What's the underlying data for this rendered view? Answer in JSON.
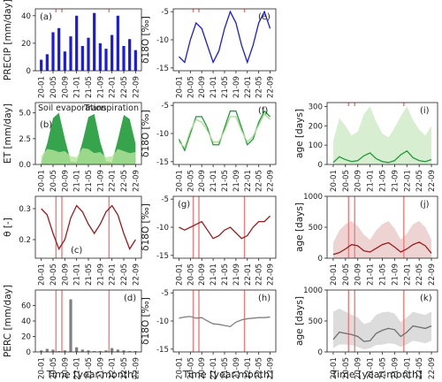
{
  "figure": {
    "x_axis_label": "Time [year-month]",
    "x_tick_labels": [
      "20-01",
      "20-05",
      "20-09",
      "21-01",
      "21-05",
      "21-09",
      "22-01",
      "22-05",
      "22-09"
    ],
    "event_marker_color": "#f07d7d"
  },
  "chart_data": [
    {
      "type": "bar",
      "panel": "(a)",
      "ylabel": "PRECIP [mm/day]",
      "ylim": [
        0,
        45
      ],
      "yticks": [
        "0",
        "20",
        "40"
      ],
      "color": "#1b1be0",
      "x": [
        "20-01",
        "20-03",
        "20-05",
        "20-07",
        "20-09",
        "20-11",
        "21-01",
        "21-03",
        "21-05",
        "21-07",
        "21-09",
        "21-11",
        "22-01",
        "22-03",
        "22-05",
        "22-07",
        "22-09"
      ],
      "values": [
        8,
        12,
        28,
        31,
        14,
        25,
        40,
        18,
        24,
        42,
        20,
        16,
        26,
        40,
        18,
        23,
        15
      ],
      "events": [
        "20-06",
        "20-08",
        "21-12"
      ]
    },
    {
      "type": "line",
      "panel": "(e)",
      "ylabel": "δ18O [‰]",
      "ylim": [
        -15.5,
        -4.5
      ],
      "yticks": [
        "-5",
        "-10",
        "-15"
      ],
      "color": "#1b1be0",
      "x": [
        "20-01",
        "20-03",
        "20-05",
        "20-07",
        "20-09",
        "20-11",
        "21-01",
        "21-03",
        "21-05",
        "21-07",
        "21-09",
        "21-11",
        "22-01",
        "22-03",
        "22-05",
        "22-07",
        "22-09"
      ],
      "values": [
        -13,
        -14,
        -10,
        -7,
        -8,
        -11,
        -14,
        -12,
        -8,
        -5,
        -7,
        -11,
        -14,
        -11,
        -7,
        -5,
        -8
      ],
      "events": [
        "20-06",
        "20-08",
        "21-12"
      ]
    },
    {
      "type": "area",
      "panel": "(b)",
      "ylabel": "ET [mm/day]",
      "ylim": [
        0,
        6
      ],
      "yticks": [
        "0.0",
        "2.5",
        "5.0"
      ],
      "annotations": [
        "Soil evaporation",
        "Transpiration"
      ],
      "x": [
        "20-01",
        "20-03",
        "20-05",
        "20-07",
        "20-09",
        "20-11",
        "21-01",
        "21-03",
        "21-05",
        "21-07",
        "21-09",
        "21-11",
        "22-01",
        "22-03",
        "22-05",
        "22-07",
        "22-09"
      ],
      "series": [
        {
          "color": "#1f9a3a",
          "values": [
            0.2,
            2.0,
            4.5,
            5.0,
            2.5,
            0.3,
            0.2,
            2.2,
            4.6,
            4.9,
            2.2,
            0.3,
            0.2,
            2.4,
            4.8,
            4.4,
            2.0
          ]
        },
        {
          "color": "#b7e59b",
          "values": [
            0.8,
            1.5,
            1.4,
            1.2,
            1.3,
            0.8,
            0.7,
            1.6,
            1.5,
            1.1,
            1.2,
            0.7,
            0.8,
            1.5,
            1.3,
            1.1,
            1.2
          ]
        }
      ]
    },
    {
      "type": "line",
      "panel": "(f)",
      "ylabel": "δ18O [‰]",
      "ylim": [
        -15.5,
        -4.5
      ],
      "yticks": [
        "-5",
        "-10",
        "-15"
      ],
      "band_color": "#a8dc92",
      "x": [
        "20-01",
        "20-03",
        "20-05",
        "20-07",
        "20-09",
        "20-11",
        "21-01",
        "21-03",
        "21-05",
        "21-07",
        "21-09",
        "21-11",
        "22-01",
        "22-03",
        "22-05",
        "22-07",
        "22-09"
      ],
      "series": [
        {
          "color": "#1f9a3a",
          "values": [
            -11,
            -13,
            -10,
            -7,
            -7,
            -9,
            -12,
            -12,
            -9,
            -6,
            -6,
            -9,
            -12,
            -11,
            -8,
            -6,
            -7
          ]
        },
        {
          "color": "#a8dc92",
          "values": [
            -11.5,
            -12.5,
            -9.5,
            -7.5,
            -8,
            -9.5,
            -11.5,
            -11.5,
            -9.5,
            -7,
            -7,
            -9.5,
            -11.5,
            -10.5,
            -8.5,
            -6.5,
            -7.5
          ]
        }
      ]
    },
    {
      "type": "line",
      "panel": "(i)",
      "ylabel": "age [days]",
      "ylim": [
        0,
        320
      ],
      "yticks": [
        "0",
        "100",
        "200",
        "300"
      ],
      "color": "#1f9a3a",
      "band_color": "#c9e8c2",
      "x": [
        "20-01",
        "20-03",
        "20-05",
        "20-07",
        "20-09",
        "20-11",
        "21-01",
        "21-03",
        "21-05",
        "21-07",
        "21-09",
        "21-11",
        "22-01",
        "22-03",
        "22-05",
        "22-07",
        "22-09"
      ],
      "values": [
        10,
        40,
        25,
        15,
        20,
        45,
        60,
        30,
        15,
        10,
        20,
        50,
        70,
        35,
        20,
        15,
        25
      ],
      "band_upper": [
        120,
        240,
        200,
        150,
        170,
        260,
        300,
        220,
        160,
        140,
        190,
        250,
        300,
        230,
        180,
        150,
        200
      ],
      "events": [
        "20-06",
        "20-08",
        "21-12"
      ]
    },
    {
      "type": "line",
      "panel": "(c)",
      "ylabel": "θ [-]",
      "ylim": [
        0.14,
        0.34
      ],
      "yticks": [
        "0.2",
        "0.3"
      ],
      "color": "#9b1c1c",
      "x": [
        "20-01",
        "20-03",
        "20-05",
        "20-07",
        "20-09",
        "20-11",
        "21-01",
        "21-03",
        "21-05",
        "21-07",
        "21-09",
        "21-11",
        "22-01",
        "22-03",
        "22-05",
        "22-07",
        "22-09"
      ],
      "values": [
        0.3,
        0.28,
        0.22,
        0.17,
        0.2,
        0.27,
        0.31,
        0.29,
        0.25,
        0.22,
        0.25,
        0.29,
        0.31,
        0.28,
        0.22,
        0.17,
        0.2
      ],
      "events": [
        "20-06",
        "20-08",
        "21-12"
      ]
    },
    {
      "type": "line",
      "panel": "(g)",
      "ylabel": "δ18O [‰]",
      "ylim": [
        -15.5,
        -4.5
      ],
      "yticks": [
        "-5",
        "-10",
        "-15"
      ],
      "color": "#9b1c1c",
      "x": [
        "20-01",
        "20-03",
        "20-05",
        "20-07",
        "20-09",
        "20-11",
        "21-01",
        "21-03",
        "21-05",
        "21-07",
        "21-09",
        "21-11",
        "22-01",
        "22-03",
        "22-05",
        "22-07",
        "22-09"
      ],
      "values": [
        -10,
        -10.5,
        -10,
        -9.5,
        -9,
        -10.5,
        -12,
        -11.5,
        -10.5,
        -10,
        -11,
        -12,
        -11.5,
        -10,
        -9,
        -9,
        -8
      ],
      "events": [
        "20-06",
        "20-08",
        "21-12"
      ]
    },
    {
      "type": "line",
      "panel": "(j)",
      "ylabel": "age [days]",
      "ylim": [
        0,
        1000
      ],
      "yticks": [
        "0",
        "500",
        "1000"
      ],
      "color": "#9b1c1c",
      "band_color": "#e8c4c4",
      "x": [
        "20-01",
        "20-03",
        "20-05",
        "20-07",
        "20-09",
        "20-11",
        "21-01",
        "21-03",
        "21-05",
        "21-07",
        "21-09",
        "21-11",
        "22-01",
        "22-03",
        "22-05",
        "22-07",
        "22-09"
      ],
      "values": [
        60,
        90,
        150,
        220,
        200,
        120,
        100,
        160,
        220,
        250,
        180,
        100,
        150,
        220,
        260,
        200,
        80
      ],
      "band_upper": [
        250,
        450,
        550,
        600,
        520,
        380,
        300,
        450,
        550,
        600,
        480,
        300,
        400,
        550,
        600,
        500,
        300
      ],
      "events": [
        "20-06",
        "20-08",
        "21-12"
      ]
    },
    {
      "type": "bar",
      "panel": "(d)",
      "ylabel": "PERC [mm/day]",
      "ylim": [
        0,
        80
      ],
      "yticks": [
        "0",
        "20",
        "40",
        "60"
      ],
      "color": "#808080",
      "x": [
        "20-01",
        "20-03",
        "20-05",
        "20-07",
        "20-09",
        "20-11",
        "21-01",
        "21-03",
        "21-05",
        "21-07",
        "21-09",
        "21-11",
        "22-01",
        "22-03",
        "22-05",
        "22-07",
        "22-09"
      ],
      "values": [
        2,
        4,
        3,
        1,
        2,
        68,
        6,
        3,
        2,
        1,
        1,
        2,
        5,
        3,
        2,
        1,
        1
      ],
      "events": [
        "20-06",
        "20-08",
        "21-12"
      ]
    },
    {
      "type": "line",
      "panel": "(h)",
      "ylabel": "δ18O [‰]",
      "ylim": [
        -15.5,
        -4.5
      ],
      "yticks": [
        "-5",
        "-10",
        "-15"
      ],
      "color": "#808080",
      "x": [
        "20-01",
        "20-03",
        "20-05",
        "20-07",
        "20-09",
        "20-11",
        "21-01",
        "21-03",
        "21-05",
        "21-07",
        "21-09",
        "21-11",
        "22-01",
        "22-03",
        "22-05",
        "22-07",
        "22-09"
      ],
      "values": [
        -9.5,
        -9.3,
        -9.2,
        -9.5,
        -9.4,
        -10,
        -10.5,
        -10.6,
        -10.8,
        -11,
        -10.2,
        -9.8,
        -9.6,
        -9.5,
        -9.4,
        -9.4,
        -9.3
      ],
      "events": [
        "20-06",
        "20-08",
        "21-12"
      ]
    },
    {
      "type": "line",
      "panel": "(k)",
      "ylabel": "age [days]",
      "ylim": [
        0,
        1000
      ],
      "yticks": [
        "0",
        "500",
        "1000"
      ],
      "color": "#6e6e6e",
      "band_color": "#d0d0d0",
      "x": [
        "20-01",
        "20-03",
        "20-05",
        "20-07",
        "20-09",
        "20-11",
        "21-01",
        "21-03",
        "21-05",
        "21-07",
        "21-09",
        "21-11",
        "22-01",
        "22-03",
        "22-05",
        "22-07",
        "22-09"
      ],
      "values": [
        200,
        320,
        300,
        280,
        250,
        170,
        180,
        300,
        350,
        380,
        360,
        250,
        320,
        420,
        400,
        380,
        420
      ],
      "band_lower": [
        60,
        120,
        120,
        110,
        80,
        40,
        60,
        110,
        120,
        140,
        130,
        80,
        120,
        180,
        160,
        140,
        180
      ],
      "band_upper": [
        650,
        700,
        650,
        600,
        560,
        450,
        480,
        600,
        640,
        650,
        620,
        480,
        560,
        650,
        620,
        600,
        650
      ],
      "events": [
        "20-06",
        "20-08",
        "21-12"
      ]
    }
  ]
}
